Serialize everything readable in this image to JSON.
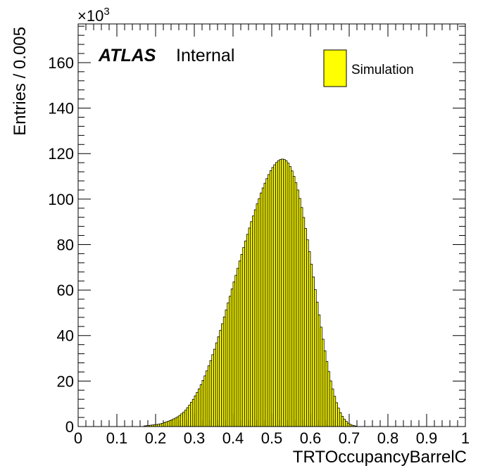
{
  "chart_data": {
    "type": "bar",
    "xlabel": "TRTOccupancyBarrelC",
    "ylabel": "Entries / 0.005",
    "y_multiplier": "×10",
    "y_multiplier_exp": "3",
    "xlim": [
      0,
      1
    ],
    "ylim": [
      0,
      177
    ],
    "bin_width": 0.005,
    "x_ticks": [
      "0",
      "0.1",
      "0.2",
      "0.3",
      "0.4",
      "0.5",
      "0.6",
      "0.7",
      "0.8",
      "0.9",
      "1"
    ],
    "y_ticks": [
      "0",
      "20",
      "40",
      "60",
      "80",
      "100",
      "120",
      "140",
      "160"
    ],
    "label_main": "ATLAS",
    "label_sub": "Internal",
    "fill_color": "#ffff00",
    "legend_position": "top-right",
    "series": [
      {
        "name": "Simulation",
        "points": [
          {
            "x": 0.17,
            "y": 0.3
          },
          {
            "x": 0.175,
            "y": 0.4
          },
          {
            "x": 0.18,
            "y": 0.5
          },
          {
            "x": 0.185,
            "y": 0.6
          },
          {
            "x": 0.19,
            "y": 0.7
          },
          {
            "x": 0.195,
            "y": 0.8
          },
          {
            "x": 0.2,
            "y": 0.9
          },
          {
            "x": 0.205,
            "y": 1.0
          },
          {
            "x": 0.21,
            "y": 1.2
          },
          {
            "x": 0.215,
            "y": 1.4
          },
          {
            "x": 0.22,
            "y": 1.7
          },
          {
            "x": 0.225,
            "y": 2.0
          },
          {
            "x": 0.23,
            "y": 2.3
          },
          {
            "x": 0.235,
            "y": 2.6
          },
          {
            "x": 0.24,
            "y": 3.0
          },
          {
            "x": 0.245,
            "y": 3.4
          },
          {
            "x": 0.25,
            "y": 3.8
          },
          {
            "x": 0.255,
            "y": 4.3
          },
          {
            "x": 0.26,
            "y": 4.9
          },
          {
            "x": 0.265,
            "y": 5.6
          },
          {
            "x": 0.27,
            "y": 6.3
          },
          {
            "x": 0.275,
            "y": 7.2
          },
          {
            "x": 0.28,
            "y": 8.3
          },
          {
            "x": 0.285,
            "y": 9.4
          },
          {
            "x": 0.29,
            "y": 10.7
          },
          {
            "x": 0.295,
            "y": 12.0
          },
          {
            "x": 0.3,
            "y": 13.5
          },
          {
            "x": 0.305,
            "y": 15.0
          },
          {
            "x": 0.31,
            "y": 16.6
          },
          {
            "x": 0.315,
            "y": 18.4
          },
          {
            "x": 0.32,
            "y": 20.3
          },
          {
            "x": 0.325,
            "y": 22.3
          },
          {
            "x": 0.33,
            "y": 24.5
          },
          {
            "x": 0.335,
            "y": 26.7
          },
          {
            "x": 0.34,
            "y": 29.0
          },
          {
            "x": 0.345,
            "y": 31.6
          },
          {
            "x": 0.35,
            "y": 34.0
          },
          {
            "x": 0.355,
            "y": 36.8
          },
          {
            "x": 0.36,
            "y": 39.5
          },
          {
            "x": 0.365,
            "y": 42.3
          },
          {
            "x": 0.37,
            "y": 45.2
          },
          {
            "x": 0.375,
            "y": 48.2
          },
          {
            "x": 0.38,
            "y": 51.3
          },
          {
            "x": 0.385,
            "y": 54.4
          },
          {
            "x": 0.39,
            "y": 57.3
          },
          {
            "x": 0.395,
            "y": 60.5
          },
          {
            "x": 0.4,
            "y": 63.6
          },
          {
            "x": 0.405,
            "y": 66.5
          },
          {
            "x": 0.41,
            "y": 69.6
          },
          {
            "x": 0.415,
            "y": 72.8
          },
          {
            "x": 0.42,
            "y": 75.7
          },
          {
            "x": 0.425,
            "y": 78.7
          },
          {
            "x": 0.43,
            "y": 81.6
          },
          {
            "x": 0.435,
            "y": 84.5
          },
          {
            "x": 0.44,
            "y": 87.3
          },
          {
            "x": 0.445,
            "y": 90.1
          },
          {
            "x": 0.45,
            "y": 92.6
          },
          {
            "x": 0.455,
            "y": 95.3
          },
          {
            "x": 0.46,
            "y": 97.9
          },
          {
            "x": 0.465,
            "y": 100.2
          },
          {
            "x": 0.47,
            "y": 102.7
          },
          {
            "x": 0.475,
            "y": 104.9
          },
          {
            "x": 0.48,
            "y": 107.0
          },
          {
            "x": 0.485,
            "y": 109.0
          },
          {
            "x": 0.49,
            "y": 110.8
          },
          {
            "x": 0.495,
            "y": 112.5
          },
          {
            "x": 0.5,
            "y": 113.9
          },
          {
            "x": 0.505,
            "y": 115.1
          },
          {
            "x": 0.51,
            "y": 116.1
          },
          {
            "x": 0.515,
            "y": 116.9
          },
          {
            "x": 0.52,
            "y": 117.4
          },
          {
            "x": 0.525,
            "y": 117.6
          },
          {
            "x": 0.53,
            "y": 117.4
          },
          {
            "x": 0.535,
            "y": 116.8
          },
          {
            "x": 0.54,
            "y": 115.8
          },
          {
            "x": 0.545,
            "y": 114.3
          },
          {
            "x": 0.55,
            "y": 112.4
          },
          {
            "x": 0.555,
            "y": 110.0
          },
          {
            "x": 0.56,
            "y": 107.2
          },
          {
            "x": 0.565,
            "y": 104.0
          },
          {
            "x": 0.57,
            "y": 100.3
          },
          {
            "x": 0.575,
            "y": 96.3
          },
          {
            "x": 0.58,
            "y": 91.9
          },
          {
            "x": 0.585,
            "y": 87.1
          },
          {
            "x": 0.59,
            "y": 82.1
          },
          {
            "x": 0.595,
            "y": 76.9
          },
          {
            "x": 0.6,
            "y": 71.4
          },
          {
            "x": 0.605,
            "y": 65.8
          },
          {
            "x": 0.61,
            "y": 60.2
          },
          {
            "x": 0.615,
            "y": 54.7
          },
          {
            "x": 0.62,
            "y": 49.1
          },
          {
            "x": 0.625,
            "y": 43.7
          },
          {
            "x": 0.63,
            "y": 38.4
          },
          {
            "x": 0.635,
            "y": 33.3
          },
          {
            "x": 0.64,
            "y": 28.6
          },
          {
            "x": 0.645,
            "y": 24.2
          },
          {
            "x": 0.65,
            "y": 20.1
          },
          {
            "x": 0.655,
            "y": 16.5
          },
          {
            "x": 0.66,
            "y": 13.3
          },
          {
            "x": 0.665,
            "y": 10.5
          },
          {
            "x": 0.67,
            "y": 8.1
          },
          {
            "x": 0.675,
            "y": 6.1
          },
          {
            "x": 0.68,
            "y": 4.5
          },
          {
            "x": 0.685,
            "y": 3.2
          },
          {
            "x": 0.69,
            "y": 2.3
          },
          {
            "x": 0.695,
            "y": 1.5
          },
          {
            "x": 0.7,
            "y": 1.0
          },
          {
            "x": 0.705,
            "y": 0.6
          },
          {
            "x": 0.71,
            "y": 0.4
          },
          {
            "x": 0.715,
            "y": 0.2
          }
        ]
      }
    ]
  }
}
